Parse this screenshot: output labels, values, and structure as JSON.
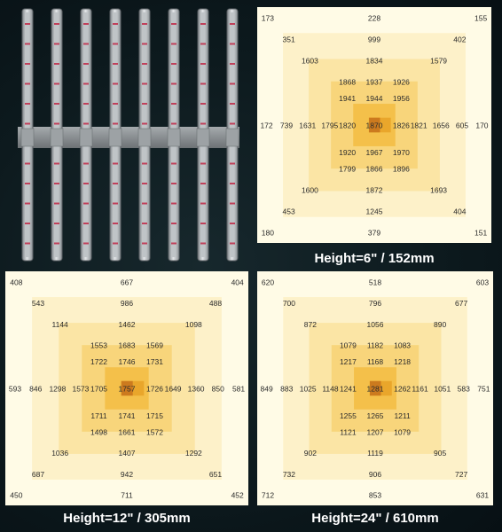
{
  "colors": {
    "background": "#0d1a1e",
    "ring0": "#fffbe6",
    "ring1": "#fdf1c9",
    "ring2": "#fbe5a5",
    "ring3": "#f8d57b",
    "ring4": "#f4c04a",
    "ring5": "#e9a62b",
    "center": "#cc7a1e",
    "caption": "#ffffff"
  },
  "chart_data": [
    {
      "type": "heatmap",
      "title": "",
      "caption": "Height=6\" / 152mm",
      "rings": [
        [
          173,
          null,
          null,
          null,
          228,
          null,
          null,
          null,
          155
        ],
        [
          null,
          351,
          null,
          null,
          999,
          null,
          null,
          402,
          null
        ],
        [
          null,
          null,
          1603,
          null,
          1834,
          null,
          1579,
          null,
          null
        ],
        [
          null,
          null,
          null,
          1868,
          1937,
          1926,
          null,
          null,
          null
        ],
        [
          null,
          null,
          null,
          1941,
          1944,
          1956,
          null,
          null,
          null
        ],
        [
          172,
          739,
          1631,
          1795,
          1820,
          1870,
          1826,
          1821,
          1656,
          605,
          170
        ],
        [
          null,
          null,
          null,
          1920,
          1967,
          1970,
          null,
          null,
          null
        ],
        [
          null,
          null,
          null,
          1799,
          1866,
          1896,
          null,
          null,
          null
        ],
        [
          null,
          null,
          1600,
          null,
          1872,
          null,
          1693,
          null,
          null
        ],
        [
          null,
          453,
          null,
          null,
          1245,
          null,
          null,
          404,
          null
        ],
        [
          180,
          null,
          null,
          null,
          379,
          null,
          null,
          null,
          151
        ]
      ]
    },
    {
      "type": "heatmap",
      "title": "",
      "caption": "Height=12\" / 305mm",
      "rings": [
        [
          408,
          null,
          null,
          null,
          667,
          null,
          null,
          null,
          404
        ],
        [
          null,
          543,
          null,
          null,
          986,
          null,
          null,
          488,
          null
        ],
        [
          null,
          null,
          1144,
          null,
          1462,
          null,
          1098,
          null,
          null
        ],
        [
          null,
          null,
          null,
          1553,
          1683,
          1569,
          null,
          null,
          null
        ],
        [
          null,
          null,
          null,
          1722,
          1746,
          1731,
          null,
          null,
          null
        ],
        [
          593,
          846,
          1298,
          1573,
          1705,
          1757,
          1726,
          1649,
          1360,
          850,
          581
        ],
        [
          null,
          null,
          null,
          1711,
          1741,
          1715,
          null,
          null,
          null
        ],
        [
          null,
          null,
          null,
          1498,
          1661,
          1572,
          null,
          null,
          null
        ],
        [
          null,
          null,
          1036,
          null,
          1407,
          null,
          1292,
          null,
          null
        ],
        [
          null,
          687,
          null,
          null,
          942,
          null,
          null,
          651,
          null
        ],
        [
          450,
          null,
          null,
          null,
          711,
          null,
          null,
          null,
          452
        ]
      ]
    },
    {
      "type": "heatmap",
      "title": "",
      "caption": "Height=24\" / 610mm",
      "rings": [
        [
          620,
          null,
          null,
          null,
          518,
          null,
          null,
          null,
          603
        ],
        [
          null,
          700,
          null,
          null,
          796,
          null,
          null,
          677,
          null
        ],
        [
          null,
          null,
          872,
          null,
          1056,
          null,
          890,
          null,
          null
        ],
        [
          null,
          null,
          null,
          1079,
          1182,
          1083,
          null,
          null,
          null
        ],
        [
          null,
          null,
          null,
          1217,
          1168,
          1218,
          null,
          null,
          null
        ],
        [
          849,
          883,
          1025,
          1148,
          1241,
          1281,
          1262,
          1161,
          1051,
          583,
          751
        ],
        [
          null,
          null,
          null,
          1255,
          1265,
          1211,
          null,
          null,
          null
        ],
        [
          null,
          null,
          null,
          1121,
          1207,
          1079,
          null,
          null,
          null
        ],
        [
          null,
          null,
          902,
          null,
          1119,
          null,
          905,
          null,
          null
        ],
        [
          null,
          732,
          null,
          null,
          906,
          null,
          null,
          727,
          null
        ],
        [
          712,
          null,
          null,
          null,
          853,
          null,
          null,
          null,
          631
        ]
      ]
    }
  ]
}
